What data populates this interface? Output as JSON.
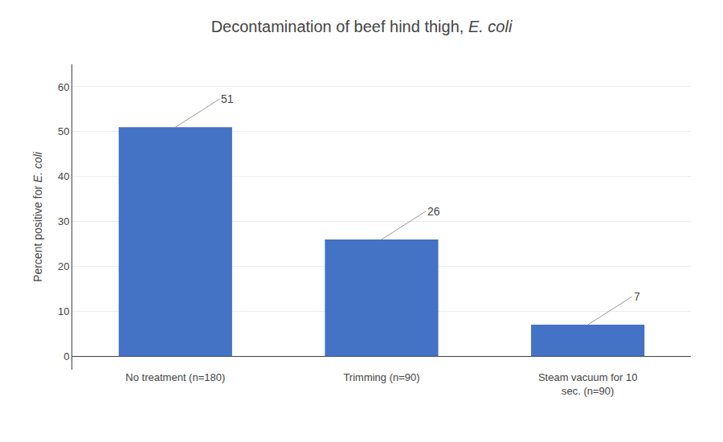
{
  "chart_data": {
    "type": "bar",
    "title": "Decontamination of beef hind thigh, E. coli",
    "y_label": "Percent positive for E. coli",
    "categories": [
      "No treatment (n=180)",
      "Trimming (n=90)",
      "Steam vacuum for 10\nsec. (n=90)"
    ],
    "values": [
      51,
      26,
      7
    ],
    "color": "#4472C4",
    "ylim": [
      -3,
      65
    ],
    "yticks": [
      0,
      10,
      20,
      30,
      40,
      50,
      60
    ],
    "grid": true,
    "data_labels": true
  }
}
